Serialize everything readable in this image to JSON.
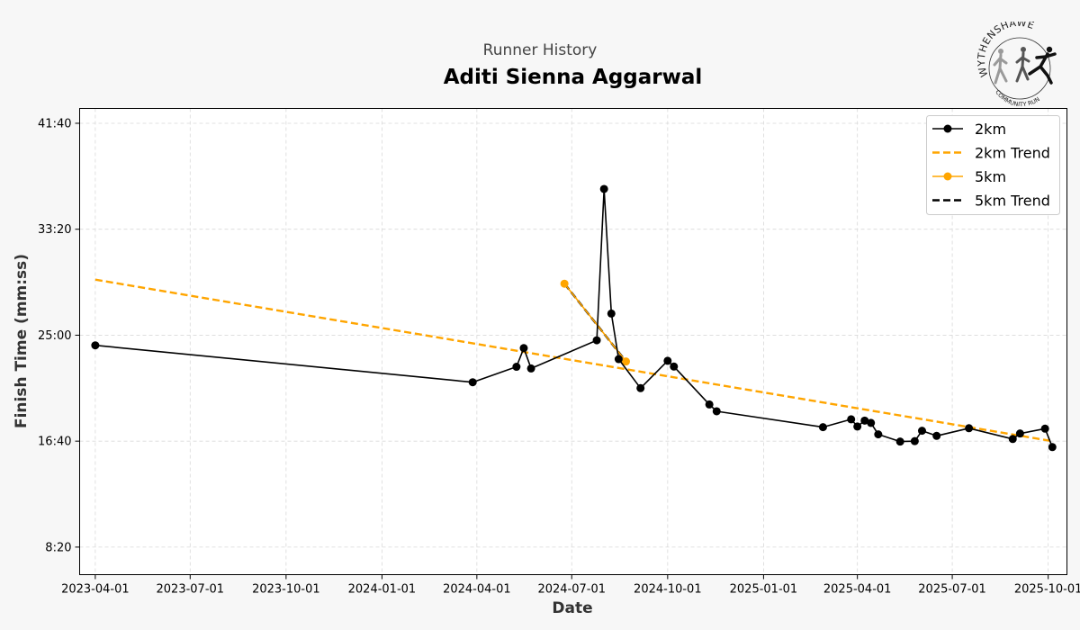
{
  "header": {
    "subtitle": "Runner History",
    "title": "Aditi Sienna Aggarwal"
  },
  "logo": {
    "name": "WYTHENSHAWE",
    "tagline": "COMMUNITY RUN"
  },
  "chart_data": {
    "type": "line",
    "xlabel": "Date",
    "ylabel": "Finish Time (mm:ss)",
    "x_ticks": [
      "2023-04-01",
      "2023-07-01",
      "2023-10-01",
      "2024-01-01",
      "2024-04-01",
      "2024-07-01",
      "2024-10-01",
      "2025-01-01",
      "2025-04-01",
      "2025-07-01",
      "2025-10-01"
    ],
    "y_ticks": [
      "8:20",
      "16:40",
      "25:00",
      "33:20",
      "41:40"
    ],
    "y_tick_values": [
      500,
      1000,
      1500,
      2000,
      2500
    ],
    "xlim": [
      "2023-03-17",
      "2025-10-19"
    ],
    "ylim": [
      370,
      2570
    ],
    "grid": true,
    "legend_position": "top-right",
    "legend": [
      "2km",
      "2km Trend",
      "5km",
      "5km Trend"
    ],
    "colors": {
      "black": "#000000",
      "orange": "#FFA500",
      "grid": "#d9d9d9"
    },
    "series": [
      {
        "name": "2km",
        "style": "line-marker",
        "color": "#000000",
        "points": [
          {
            "x": "2023-04-01",
            "y": 1452
          },
          {
            "x": "2024-03-28",
            "y": 1278
          },
          {
            "x": "2024-05-09",
            "y": 1351
          },
          {
            "x": "2024-05-16",
            "y": 1439
          },
          {
            "x": "2024-05-23",
            "y": 1343
          },
          {
            "x": "2024-07-25",
            "y": 1476
          },
          {
            "x": "2024-08-01",
            "y": 2190
          },
          {
            "x": "2024-08-08",
            "y": 1602
          },
          {
            "x": "2024-08-15",
            "y": 1387
          },
          {
            "x": "2024-09-05",
            "y": 1250
          },
          {
            "x": "2024-10-01",
            "y": 1379
          },
          {
            "x": "2024-10-07",
            "y": 1352
          },
          {
            "x": "2024-11-10",
            "y": 1173
          },
          {
            "x": "2024-11-17",
            "y": 1141
          },
          {
            "x": "2025-02-27",
            "y": 1066
          },
          {
            "x": "2025-03-26",
            "y": 1103
          },
          {
            "x": "2025-04-01",
            "y": 1069
          },
          {
            "x": "2025-04-08",
            "y": 1097
          },
          {
            "x": "2025-04-14",
            "y": 1086
          },
          {
            "x": "2025-04-21",
            "y": 1032
          },
          {
            "x": "2025-05-12",
            "y": 998
          },
          {
            "x": "2025-05-26",
            "y": 1000
          },
          {
            "x": "2025-06-02",
            "y": 1049
          },
          {
            "x": "2025-06-16",
            "y": 1025
          },
          {
            "x": "2025-07-17",
            "y": 1061
          },
          {
            "x": "2025-08-28",
            "y": 1010
          },
          {
            "x": "2025-09-04",
            "y": 1036
          },
          {
            "x": "2025-09-28",
            "y": 1059
          },
          {
            "x": "2025-10-05",
            "y": 972
          }
        ]
      },
      {
        "name": "2km Trend",
        "style": "dashed",
        "color": "#FFA500",
        "points": [
          {
            "x": "2023-04-01",
            "y": 1762
          },
          {
            "x": "2025-10-05",
            "y": 1000
          }
        ]
      },
      {
        "name": "5km",
        "style": "line-marker",
        "color": "#FFA500",
        "points": [
          {
            "x": "2024-06-24",
            "y": 1743
          },
          {
            "x": "2024-08-22",
            "y": 1376
          }
        ]
      },
      {
        "name": "5km Trend",
        "style": "dashed",
        "color": "#000000",
        "points": [
          {
            "x": "2024-06-24",
            "y": 1743
          },
          {
            "x": "2024-08-22",
            "y": 1376
          }
        ]
      }
    ]
  }
}
